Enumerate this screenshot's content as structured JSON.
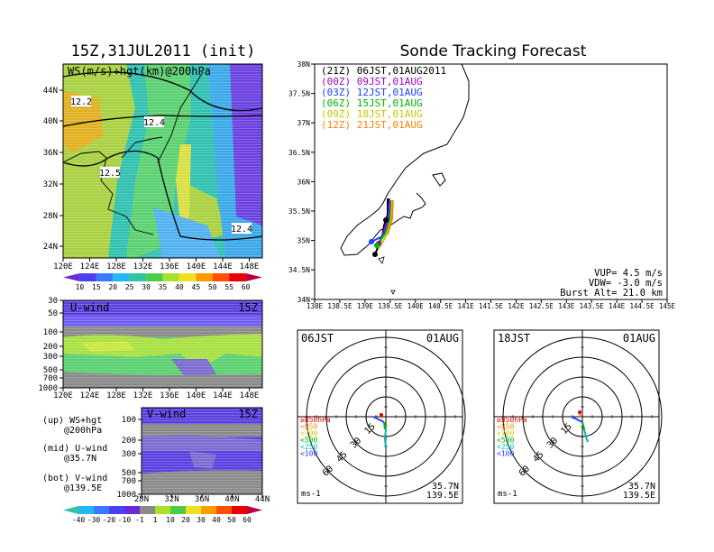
{
  "left_title": "15Z,31JUL2011 (init)",
  "right_title": "Sonde Tracking Forecast",
  "colors": {
    "purple": "#8800cc",
    "blue": "#3a5cff",
    "cyan": "#22c8e8",
    "teal": "#2ec6a0",
    "green": "#78d634",
    "yellowgreen": "#a8e62c",
    "grey": "#999999",
    "red": "#ff0000"
  },
  "top_map": {
    "label": "WS(m/s)+hgt(km)@200hPa",
    "lat_ticks": [
      "44N",
      "40N",
      "36N",
      "32N",
      "28N",
      "24N"
    ],
    "lon_ticks": [
      "120E",
      "124E",
      "128E",
      "132E",
      "136E",
      "140E",
      "144E",
      "148E"
    ],
    "contour_labels": [
      "12.2",
      "12.4",
      "12.5",
      "12.4"
    ]
  },
  "colorbar1": {
    "ticks": [
      "10",
      "15",
      "20",
      "25",
      "30",
      "35",
      "40",
      "45",
      "50",
      "55",
      "60"
    ]
  },
  "u_panel": {
    "label": "U-wind",
    "time": "15Z",
    "p_ticks": [
      "30",
      "50",
      "100",
      "200",
      "300",
      "500",
      "700",
      "1000"
    ],
    "lon_ticks": [
      "120E",
      "124E",
      "128E",
      "132E",
      "136E",
      "140E",
      "144E",
      "148E"
    ]
  },
  "v_panel": {
    "label": "V-wind",
    "time": "15Z",
    "p_ticks": [
      "100",
      "200",
      "300",
      "500",
      "700",
      "1000"
    ],
    "lat_ticks": [
      "28N",
      "32N",
      "36N",
      "40N",
      "44N"
    ]
  },
  "colorbar2": {
    "ticks": [
      "-40",
      "-30",
      "-20",
      "-10",
      "-1",
      "1",
      "10",
      "20",
      "30",
      "40",
      "50",
      "60"
    ]
  },
  "side_notes": [
    "(up) WS+hgt",
    "@200hPa",
    "(mid) U-wind",
    "@35.7N",
    "(bot) V-wind",
    "@139.5E"
  ],
  "track_map": {
    "legend": [
      {
        "text": "(21Z) 06JST,01AUG2011",
        "color": "#000000"
      },
      {
        "text": "(00Z) 09JST,01AUG",
        "color": "#a000c8"
      },
      {
        "text": "(03Z) 12JST,01AUG",
        "color": "#2040ff"
      },
      {
        "text": "(06Z) 15JST,01AUG",
        "color": "#00b400"
      },
      {
        "text": "(09Z) 18JST,01AUG",
        "color": "#c8c800"
      },
      {
        "text": "(12Z) 21JST,01AUG",
        "color": "#ff8000"
      }
    ],
    "lat_ticks": [
      "38N",
      "37.5N",
      "37N",
      "36.5N",
      "36N",
      "35.5N",
      "35N",
      "34.5N",
      "34N"
    ],
    "lon_ticks": [
      "138E",
      "138.5E",
      "139E",
      "139.5E",
      "140E",
      "140.5E",
      "141E",
      "141.5E",
      "142E",
      "142.5E",
      "143E",
      "143.5E",
      "144E",
      "144.5E",
      "145E"
    ],
    "params": [
      "VUP= 4.5 m/s",
      "VDW= -3.0 m/s",
      "Burst Alt= 21.0 km"
    ]
  },
  "hodo1": {
    "time": "06JST",
    "date": "01AUG"
  },
  "hodo2": {
    "time": "18JST",
    "date": "01AUG"
  },
  "hodo_common": {
    "ring_labels": [
      "15",
      "30",
      "45",
      "60"
    ],
    "unit": "ms-1",
    "lat": "35.7N",
    "lon": "139.5E",
    "levels": [
      {
        "text": "≥850hPa",
        "color": "#e00000"
      },
      {
        "text": "<850",
        "color": "#ff8c00"
      },
      {
        "text": "<700",
        "color": "#d8c800"
      },
      {
        "text": "<500",
        "color": "#00b400"
      },
      {
        "text": "<250",
        "color": "#00c8c8"
      },
      {
        "text": "<100",
        "color": "#2040ff"
      }
    ]
  },
  "chart_data": [
    {
      "type": "heatmap",
      "title": "15Z,31JUL2011 (init)",
      "label": "WS(m/s)+hgt(km)@200hPa",
      "contours": [
        "12.2",
        "12.4",
        "12.5",
        "12.4"
      ],
      "colorbar": [
        10,
        15,
        20,
        25,
        30,
        35,
        40,
        45,
        50,
        55,
        60
      ]
    },
    {
      "type": "heatmap",
      "label": "U-wind",
      "time": "15Z",
      "colorbar": [
        -40,
        -30,
        -20,
        -10,
        -1,
        1,
        10,
        20,
        30,
        40,
        50,
        60
      ]
    },
    {
      "type": "heatmap",
      "label": "V-wind",
      "time": "15Z"
    },
    {
      "type": "line",
      "title": "Sonde Tracking Forecast",
      "xlim": [
        138,
        145
      ],
      "ylim": [
        34,
        38
      ],
      "vup": 4.5,
      "vdw": -3.0,
      "burst_alt_km": 21.0
    },
    {
      "type": "line",
      "label": "hodograph 06JST 01AUG"
    },
    {
      "type": "line",
      "label": "hodograph 18JST 01AUG"
    }
  ]
}
